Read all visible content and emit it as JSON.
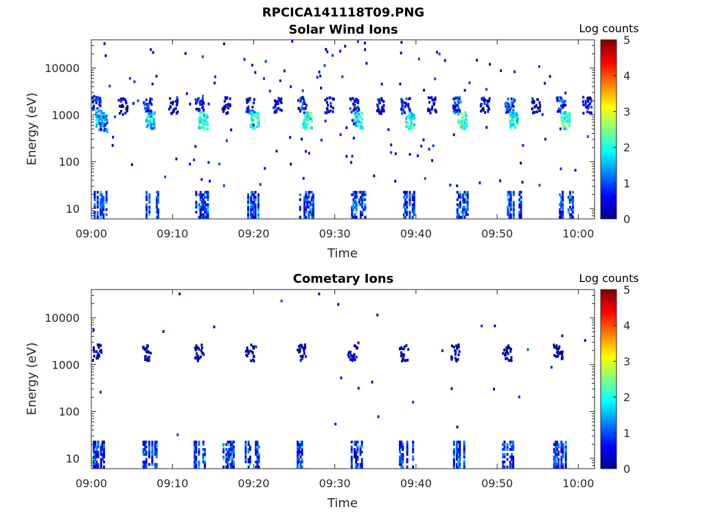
{
  "figure": {
    "title": "RPCICA141118T09.PNG",
    "colormap": "jet"
  },
  "chart_data": [
    {
      "type": "heatmap",
      "title": "Solar Wind Ions",
      "xlabel": "Time",
      "ylabel": "Energy (eV)",
      "x_ticks": [
        "09:00",
        "09:10",
        "09:20",
        "09:30",
        "09:40",
        "09:50",
        "10:00"
      ],
      "x_tick_minutes": [
        0,
        10,
        20,
        30,
        40,
        50,
        60
      ],
      "xlim_minutes": [
        0,
        62
      ],
      "y_scale": "log",
      "y_ticks": [
        "10",
        "100",
        "1000",
        "10000"
      ],
      "y_tick_values": [
        10,
        100,
        1000,
        10000
      ],
      "ylim": [
        6,
        40000
      ],
      "colorbar": {
        "label": "Log counts",
        "ticks": [
          "0",
          "1",
          "2",
          "3",
          "4",
          "5"
        ],
        "range": [
          0,
          5
        ]
      },
      "sweep_starts_minutes": [
        0.3,
        6.5,
        12.8,
        19.2,
        25.6,
        32.0,
        38.4,
        44.8,
        51.2,
        57.6
      ],
      "bursts": [
        {
          "t": 0.5,
          "e": 1700,
          "v": 1.2
        },
        {
          "t": 1.0,
          "e": 900,
          "v": 2.4
        },
        {
          "t": 1.3,
          "e": 700,
          "v": 1.8
        },
        {
          "t": 3.8,
          "e": 1600,
          "v": 0.9
        },
        {
          "t": 6.8,
          "e": 1700,
          "v": 1.3
        },
        {
          "t": 7.2,
          "e": 800,
          "v": 2.3
        },
        {
          "t": 10.0,
          "e": 1700,
          "v": 0.9
        },
        {
          "t": 13.2,
          "e": 1800,
          "v": 1.4
        },
        {
          "t": 13.7,
          "e": 800,
          "v": 2.6
        },
        {
          "t": 16.5,
          "e": 1700,
          "v": 1.0
        },
        {
          "t": 19.5,
          "e": 1700,
          "v": 1.2
        },
        {
          "t": 20.0,
          "e": 800,
          "v": 2.5
        },
        {
          "t": 22.8,
          "e": 1700,
          "v": 0.9
        },
        {
          "t": 25.9,
          "e": 1700,
          "v": 1.3
        },
        {
          "t": 26.5,
          "e": 800,
          "v": 2.8
        },
        {
          "t": 29.2,
          "e": 1700,
          "v": 0.9
        },
        {
          "t": 32.3,
          "e": 1700,
          "v": 1.3
        },
        {
          "t": 32.8,
          "e": 800,
          "v": 2.5
        },
        {
          "t": 35.5,
          "e": 1700,
          "v": 1.0
        },
        {
          "t": 38.6,
          "e": 1700,
          "v": 1.3
        },
        {
          "t": 39.2,
          "e": 800,
          "v": 2.6
        },
        {
          "t": 41.9,
          "e": 1700,
          "v": 0.9
        },
        {
          "t": 45.0,
          "e": 1700,
          "v": 1.5
        },
        {
          "t": 45.6,
          "e": 800,
          "v": 2.7
        },
        {
          "t": 48.4,
          "e": 1700,
          "v": 1.0
        },
        {
          "t": 51.4,
          "e": 1700,
          "v": 1.5
        },
        {
          "t": 52.0,
          "e": 800,
          "v": 2.6
        },
        {
          "t": 54.7,
          "e": 1700,
          "v": 1.0
        },
        {
          "t": 57.8,
          "e": 1700,
          "v": 1.4
        },
        {
          "t": 58.3,
          "e": 800,
          "v": 2.7
        },
        {
          "t": 61.0,
          "e": 1700,
          "v": 1.1
        }
      ]
    },
    {
      "type": "heatmap",
      "title": "Cometary Ions",
      "xlabel": "Time",
      "ylabel": "Energy (eV)",
      "x_ticks": [
        "09:00",
        "09:10",
        "09:20",
        "09:30",
        "09:40",
        "09:50",
        "10:00"
      ],
      "x_tick_minutes": [
        0,
        10,
        20,
        30,
        40,
        50,
        60
      ],
      "xlim_minutes": [
        0,
        62
      ],
      "y_scale": "log",
      "y_ticks": [
        "10",
        "100",
        "1000",
        "10000"
      ],
      "y_tick_values": [
        10,
        100,
        1000,
        10000
      ],
      "ylim": [
        6,
        40000
      ],
      "colorbar": {
        "label": "Log counts",
        "ticks": [
          "0",
          "1",
          "2",
          "3",
          "4",
          "5"
        ],
        "range": [
          0,
          5
        ]
      },
      "sweep_starts_minutes": [
        0.0,
        6.3,
        12.6,
        15.8,
        18.9,
        25.3,
        31.6,
        37.9,
        44.2,
        50.6,
        56.9
      ],
      "bursts": [
        {
          "t": 0.6,
          "e": 1900,
          "v": 0.6
        },
        {
          "t": 6.8,
          "e": 1900,
          "v": 0.6
        },
        {
          "t": 13.1,
          "e": 1900,
          "v": 0.7
        },
        {
          "t": 19.4,
          "e": 1900,
          "v": 0.6
        },
        {
          "t": 25.8,
          "e": 1900,
          "v": 0.7
        },
        {
          "t": 32.1,
          "e": 1900,
          "v": 0.7
        },
        {
          "t": 38.4,
          "e": 1900,
          "v": 0.6
        },
        {
          "t": 44.7,
          "e": 1900,
          "v": 0.6
        },
        {
          "t": 51.1,
          "e": 1900,
          "v": 0.7
        },
        {
          "t": 57.4,
          "e": 1900,
          "v": 0.7
        }
      ]
    }
  ]
}
